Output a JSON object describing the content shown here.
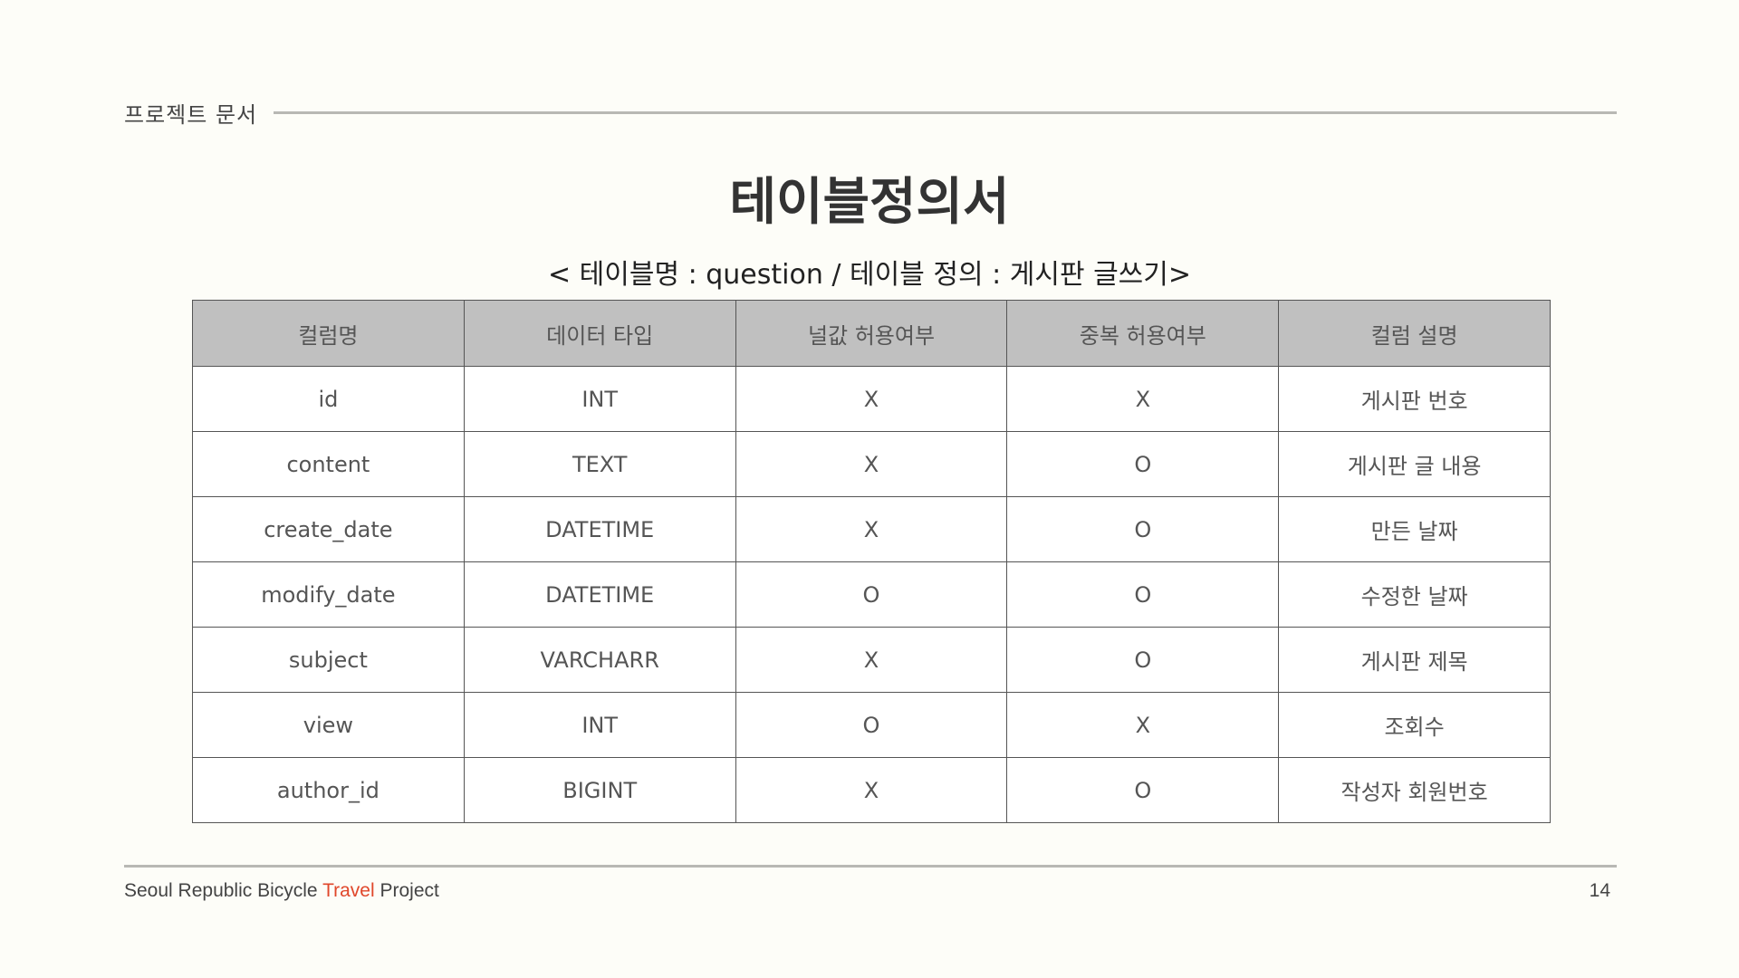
{
  "header": {
    "label": "프로젝트 문서"
  },
  "title": "테이블정의서",
  "subtitle": "< 테이블명 :  question / 테이블 정의 : 게시판 글쓰기>",
  "table": {
    "columns": [
      "컬럼명",
      "데이터 타입",
      "널값 허용여부",
      "중복 허용여부",
      "컬럼 설명"
    ],
    "rows": [
      [
        "id",
        "INT",
        "X",
        "X",
        "게시판 번호"
      ],
      [
        "content",
        "TEXT",
        "X",
        "O",
        "게시판 글 내용"
      ],
      [
        "create_date",
        "DATETIME",
        "X",
        "O",
        "만든 날짜"
      ],
      [
        "modify_date",
        "DATETIME",
        "O",
        "O",
        "수정한 날짜"
      ],
      [
        "subject",
        "VARCHARR",
        "X",
        "O",
        "게시판 제목"
      ],
      [
        "view",
        "INT",
        "O",
        "X",
        "조회수"
      ],
      [
        "author_id",
        "BIGINT",
        "X",
        "O",
        "작성자 회원번호"
      ]
    ]
  },
  "footer": {
    "project_prefix": "Seoul Republic Bicycle ",
    "project_accent": "Travel",
    "project_suffix": " Project",
    "page_number": "14",
    "accent_color": "#e0472b"
  }
}
